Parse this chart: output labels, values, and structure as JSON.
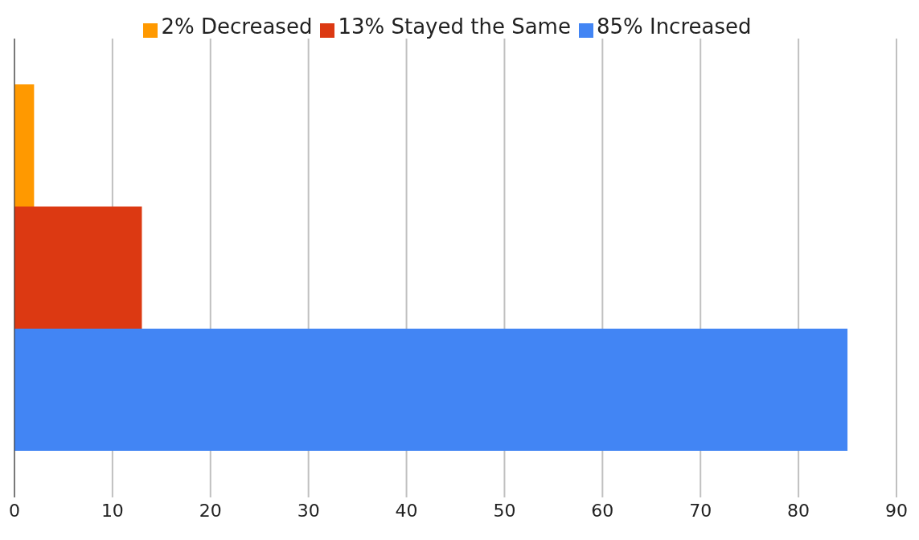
{
  "chart_data": {
    "type": "bar",
    "orientation": "horizontal",
    "categories": [
      null
    ],
    "series": [
      {
        "name": "2% Decreased",
        "color": "#ff9900",
        "values": [
          2
        ]
      },
      {
        "name": "13% Stayed the Same",
        "color": "#dc3912",
        "values": [
          13
        ]
      },
      {
        "name": "85% Increased",
        "color": "#4285f4",
        "values": [
          85
        ]
      }
    ],
    "xlim": [
      0,
      90
    ],
    "xticks": [
      0,
      10,
      20,
      30,
      40,
      50,
      60,
      70,
      80,
      90
    ],
    "grid": "x",
    "legend": "top",
    "tick_labels": "x"
  }
}
